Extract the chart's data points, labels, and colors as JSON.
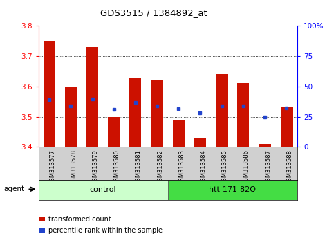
{
  "title": "GDS3515 / 1384892_at",
  "samples": [
    "GSM313577",
    "GSM313578",
    "GSM313579",
    "GSM313580",
    "GSM313581",
    "GSM313582",
    "GSM313583",
    "GSM313584",
    "GSM313585",
    "GSM313586",
    "GSM313587",
    "GSM313588"
  ],
  "red_values": [
    3.75,
    3.6,
    3.73,
    3.5,
    3.63,
    3.62,
    3.49,
    3.43,
    3.64,
    3.61,
    3.41,
    3.53
  ],
  "blue_values": [
    3.555,
    3.535,
    3.558,
    3.525,
    3.548,
    3.535,
    3.527,
    3.513,
    3.535,
    3.535,
    3.498,
    3.528
  ],
  "ymin": 3.4,
  "ymax": 3.8,
  "y2min": 0,
  "y2max": 100,
  "yticks": [
    3.4,
    3.5,
    3.6,
    3.7,
    3.8
  ],
  "y2ticks": [
    0,
    25,
    50,
    75,
    100
  ],
  "y2ticklabels": [
    "0",
    "25",
    "50",
    "75",
    "100%"
  ],
  "groups": [
    {
      "label": "control",
      "indices": [
        0,
        1,
        2,
        3,
        4,
        5
      ],
      "color": "#ccffcc"
    },
    {
      "label": "htt-171-82Q",
      "indices": [
        6,
        7,
        8,
        9,
        10,
        11
      ],
      "color": "#44dd44"
    }
  ],
  "agent_label": "agent",
  "bar_color": "#cc1100",
  "blue_color": "#2244cc",
  "bar_bottom": 3.4,
  "bar_width": 0.55,
  "legend_items": [
    {
      "label": "transformed count",
      "color": "#cc1100"
    },
    {
      "label": "percentile rank within the sample",
      "color": "#2244cc"
    }
  ],
  "background_color": "#ffffff",
  "tick_area_bg": "#d0d0d0"
}
